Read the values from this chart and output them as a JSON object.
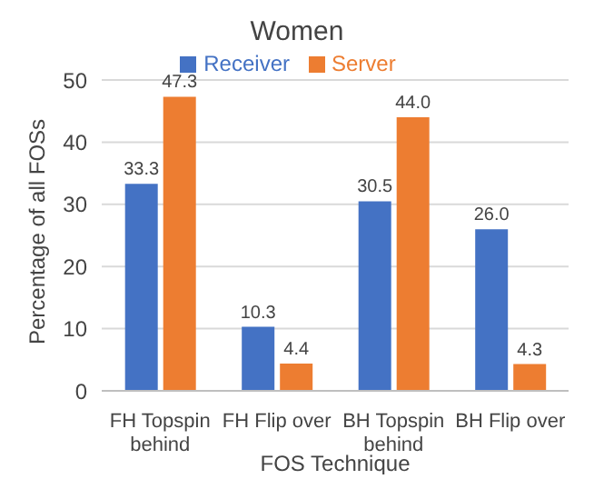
{
  "chart_data": {
    "type": "bar",
    "title": "Women",
    "xlabel": "FOS Technique",
    "ylabel": "Percentage of all FOSs",
    "categories": [
      "FH Topspin behind",
      "FH Flip over",
      "BH Topspin behind",
      "BH Flip over"
    ],
    "series": [
      {
        "name": "Receiver",
        "color": "#4472c4",
        "values": [
          33.3,
          10.3,
          30.5,
          26.0
        ],
        "value_labels": [
          "33.3",
          "10.3",
          "30.5",
          "26.0"
        ]
      },
      {
        "name": "Server",
        "color": "#ed7d31",
        "values": [
          47.3,
          4.4,
          44.0,
          4.3
        ],
        "value_labels": [
          "47.3",
          "4.4",
          "44.0",
          "4.3"
        ]
      }
    ],
    "ylim": [
      0,
      50
    ],
    "yticks": [
      0,
      10,
      20,
      30,
      40,
      50
    ],
    "grid": "y",
    "legend": "top"
  }
}
